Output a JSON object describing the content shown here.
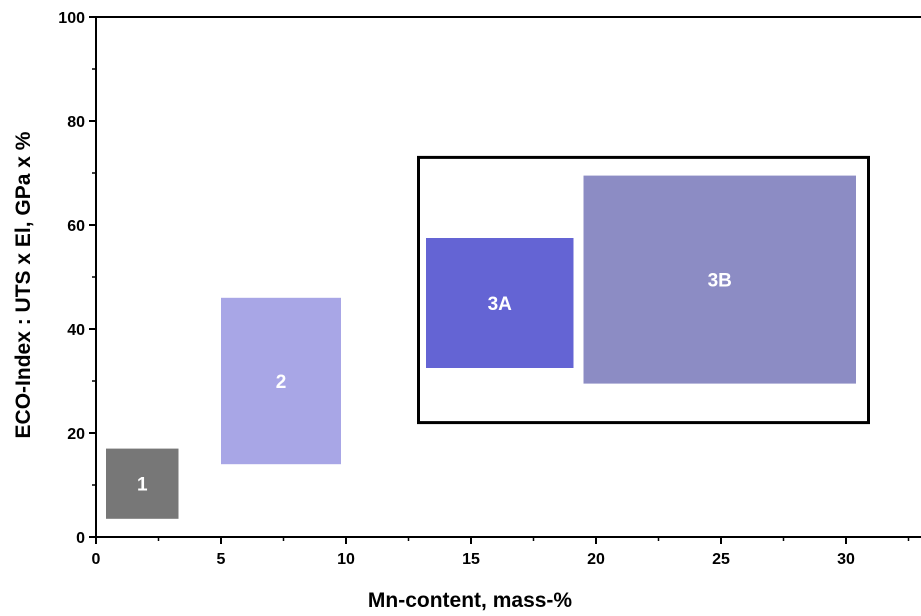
{
  "chart_data": {
    "type": "range-rectangles",
    "title": "",
    "xlabel": "Mn-content, mass-%",
    "ylabel": "ECO-Index : UTS x El, GPa x %",
    "xlim": [
      0,
      33
    ],
    "ylim": [
      0,
      100
    ],
    "xticks": [
      0,
      5,
      10,
      15,
      20,
      25,
      30
    ],
    "yticks": [
      0,
      20,
      40,
      60,
      80,
      100
    ],
    "grid": false,
    "regions": [
      {
        "label": "1",
        "x": [
          0.4,
          3.3
        ],
        "y": [
          3.5,
          17
        ],
        "color": "#777777"
      },
      {
        "label": "2",
        "x": [
          5.0,
          9.8
        ],
        "y": [
          14,
          46
        ],
        "color": "#a8a6e6"
      },
      {
        "label": "3A",
        "x": [
          13.2,
          19.1
        ],
        "y": [
          32.5,
          57.5
        ],
        "color": "#6464d4"
      },
      {
        "label": "3B",
        "x": [
          19.5,
          30.4
        ],
        "y": [
          29.5,
          69.5
        ],
        "color": "#8c8cc4"
      }
    ],
    "annotations": [
      {
        "type": "box",
        "x": [
          12.9,
          30.9
        ],
        "y": [
          22,
          73
        ],
        "color": "#000000"
      }
    ]
  }
}
